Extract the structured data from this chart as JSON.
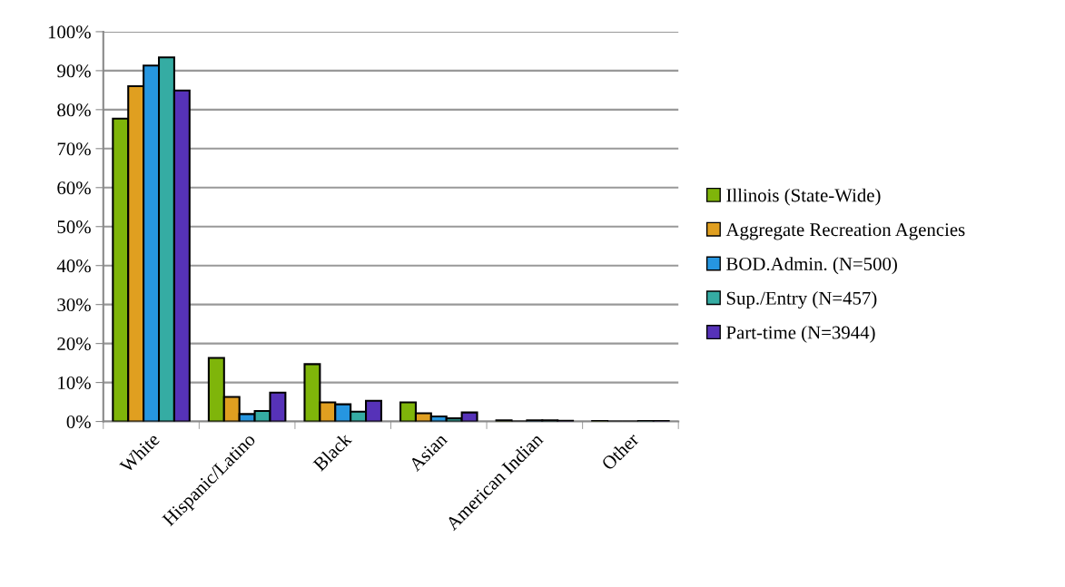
{
  "chart_data": {
    "type": "bar",
    "categories": [
      "White",
      "Hispanic/Latino",
      "Black",
      "Asian",
      "American Indian",
      "Other"
    ],
    "series": [
      {
        "name": "Illinois (State-Wide)",
        "color": "#7fb50a",
        "values": [
          77.7,
          16.3,
          14.7,
          4.9,
          0.3,
          0.1
        ]
      },
      {
        "name": "Aggregate Recreation Agencies",
        "color": "#e09f20",
        "values": [
          86.0,
          6.3,
          4.9,
          2.1,
          null,
          null
        ]
      },
      {
        "name": "BOD.Admin. (N=500)",
        "color": "#2696e0",
        "values": [
          91.3,
          1.9,
          4.4,
          1.3,
          0.3,
          null
        ]
      },
      {
        "name": "Sup./Entry (N=457)",
        "color": "#35aca3",
        "values": [
          93.4,
          2.7,
          2.5,
          0.8,
          0.3,
          0.1
        ]
      },
      {
        "name": "Part-time (N=3944)",
        "color": "#5632b8",
        "values": [
          84.9,
          7.4,
          5.3,
          2.3,
          0.2,
          0.1
        ]
      }
    ],
    "ylim": [
      0,
      100
    ],
    "yticks": [
      {
        "value": 0,
        "label": "0%"
      },
      {
        "value": 10,
        "label": "10%"
      },
      {
        "value": 20,
        "label": "20%"
      },
      {
        "value": 30,
        "label": "30%"
      },
      {
        "value": 40,
        "label": "40%"
      },
      {
        "value": 50,
        "label": "50%"
      },
      {
        "value": 60,
        "label": "60%"
      },
      {
        "value": 70,
        "label": "70%"
      },
      {
        "value": 80,
        "label": "80%"
      },
      {
        "value": 90,
        "label": "90%"
      },
      {
        "value": 100,
        "label": "100%"
      }
    ],
    "grid": "y",
    "legend": "right"
  }
}
